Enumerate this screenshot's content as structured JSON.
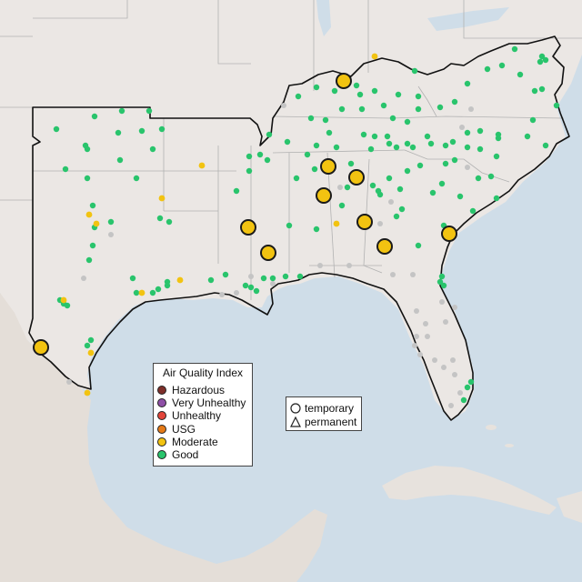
{
  "legend": {
    "title": "Air Quality Index",
    "items": [
      {
        "label": "Hazardous",
        "color": "#7e2f2a"
      },
      {
        "label": "Very Unhealthy",
        "color": "#8e4fa6"
      },
      {
        "label": "Unhealthy",
        "color": "#e2453a"
      },
      {
        "label": "USG",
        "color": "#e57a17"
      },
      {
        "label": "Moderate",
        "color": "#f2c311"
      },
      {
        "label": "Good",
        "color": "#29c46c"
      }
    ]
  },
  "shape_legend": {
    "items": [
      {
        "label": "temporary",
        "icon": "circle-icon"
      },
      {
        "label": "permanent",
        "icon": "triangle-icon"
      }
    ]
  },
  "colors": {
    "water": "#cfdde8",
    "land": "#ebe7e4",
    "good": "#29c46c",
    "moderate": "#f2c311",
    "no_data": "#c4c4c4"
  }
}
